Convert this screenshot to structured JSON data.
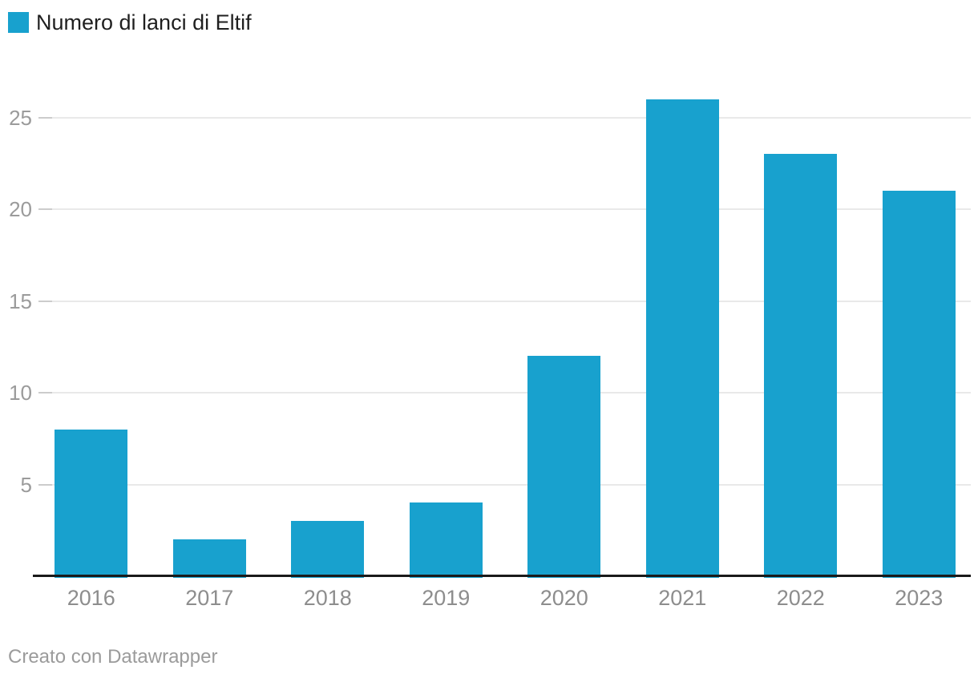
{
  "legend": {
    "label": "Numero di lanci di Eltif",
    "swatch_icon": "square-swatch-icon",
    "swatch_color": "#18a1ce"
  },
  "footer": {
    "text": "Creato con Datawrapper"
  },
  "chart_data": {
    "type": "bar",
    "title": "",
    "xlabel": "",
    "ylabel": "",
    "series_name": "Numero di lanci di Eltif",
    "categories": [
      "2016",
      "2017",
      "2018",
      "2019",
      "2020",
      "2021",
      "2022",
      "2023"
    ],
    "values": [
      8,
      2,
      3,
      4,
      12,
      26,
      23,
      21
    ],
    "ylim": [
      0,
      26
    ],
    "yticks": [
      5,
      10,
      15,
      20,
      25
    ],
    "grid": "horizontal",
    "legend_position": "top-left",
    "bar_color": "#18a1ce"
  },
  "colors": {
    "background": "#ffffff",
    "bar": "#18a1ce",
    "grid_line": "#e9e9e9",
    "grid_tick": "#cccccc",
    "axis_line": "#1a1a1a",
    "y_label": "#9b9b9b",
    "x_label": "#8d8d8d",
    "legend_text": "#1f1f1f",
    "footer_text": "#9b9b9b"
  }
}
